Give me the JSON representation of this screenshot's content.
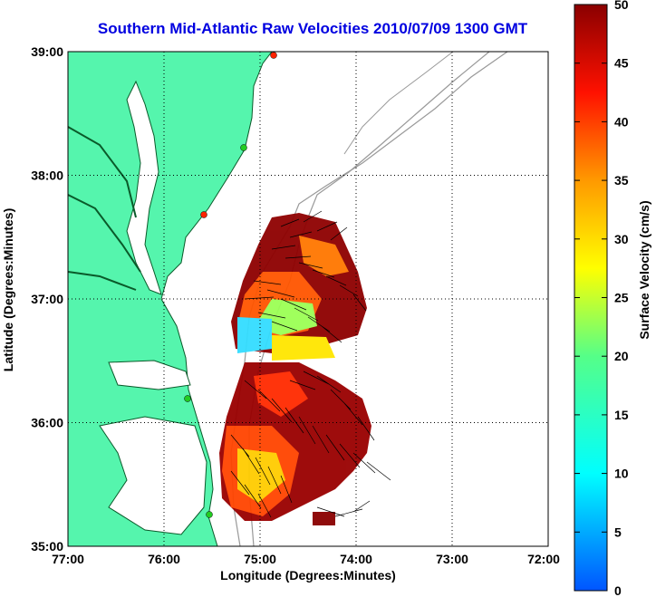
{
  "title": "Southern Mid-Atlantic Raw Velocities 2010/07/09 1300 GMT",
  "x_axis": {
    "label": "Longitude (Degrees:Minutes)",
    "ticks": [
      "77:00",
      "76:00",
      "75:00",
      "74:00",
      "73:00",
      "72:00"
    ]
  },
  "y_axis": {
    "label": "Latitude (Degrees:Minutes)",
    "ticks": [
      "39:00",
      "38:00",
      "37:00",
      "36:00",
      "35:00"
    ]
  },
  "colorbar": {
    "label": "Surface Velocity (cm/s)",
    "ticks": [
      "50",
      "45",
      "40",
      "35",
      "30",
      "25",
      "20",
      "15",
      "10",
      "5",
      "0"
    ],
    "min": 0,
    "max": 50
  },
  "colors": {
    "land": "#55f5ad",
    "title": "#0000e0",
    "station_green": "#22cc22",
    "station_red": "#ff2200"
  }
}
